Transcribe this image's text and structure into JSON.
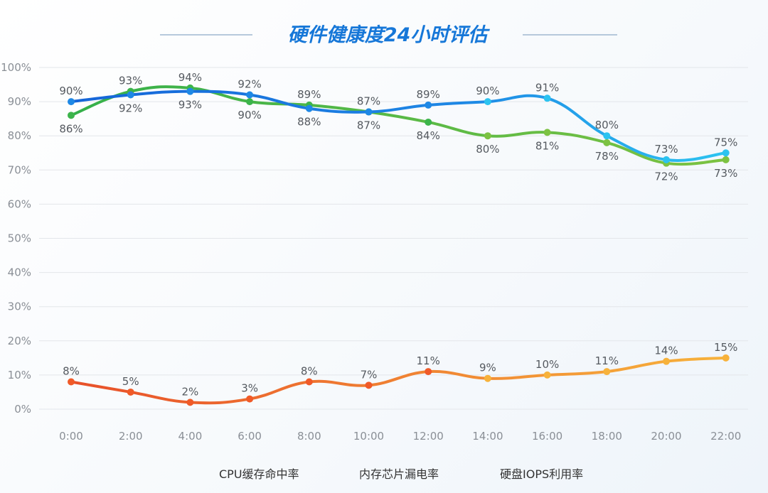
{
  "chart_data": {
    "type": "line",
    "title": "硬件健康度24小时评估",
    "categories": [
      "0:00",
      "2:00",
      "4:00",
      "6:00",
      "8:00",
      "10:00",
      "12:00",
      "14:00",
      "16:00",
      "18:00",
      "20:00",
      "22:00"
    ],
    "y_ticks": [
      "0%",
      "10%",
      "20%",
      "30%",
      "40%",
      "50%",
      "60%",
      "70%",
      "80%",
      "90%",
      "100%"
    ],
    "ylim": [
      0,
      100
    ],
    "grid": true,
    "legend_position": "bottom",
    "series": [
      {
        "name": "CPU缓存命中率",
        "color": "#1e88e5",
        "color_end": "#2cc3f0",
        "values": [
          90,
          92,
          93,
          92,
          88,
          87,
          89,
          90,
          91,
          80,
          73,
          75
        ]
      },
      {
        "name": "内存芯片漏电率",
        "color": "#f05a28",
        "color_end": "#f7b23b",
        "values": [
          8,
          5,
          2,
          3,
          8,
          7,
          11,
          9,
          10,
          11,
          14,
          15
        ]
      },
      {
        "name": "硬盘IOPS利用率",
        "color": "#3cb44b",
        "color_end": "#7cc242",
        "values": [
          86,
          93,
          94,
          90,
          89,
          87,
          84,
          80,
          81,
          78,
          72,
          73
        ]
      }
    ]
  }
}
